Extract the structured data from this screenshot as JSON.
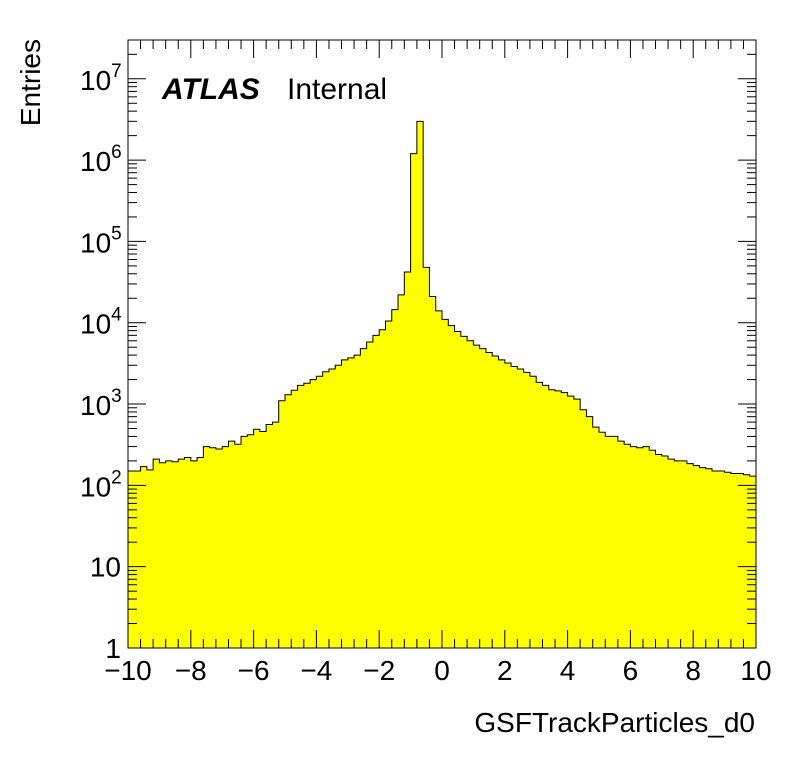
{
  "header": {
    "atlas_label": "ATLAS",
    "atlas_status": "Internal"
  },
  "colors": {
    "fill": "#ffff00",
    "line": "#000000"
  },
  "chart_data": {
    "type": "histogram",
    "xlabel": "GSFTrackParticles_d0",
    "ylabel": "Entries",
    "xlim": [
      -10,
      10
    ],
    "ylim": [
      1,
      30000000
    ],
    "log_y": true,
    "grid": false,
    "fill_color": "#ffff00",
    "bin_width": 0.2,
    "x_ticks": [
      {
        "value": -10,
        "label": "−10"
      },
      {
        "value": -8,
        "label": "−8"
      },
      {
        "value": -6,
        "label": "−6"
      },
      {
        "value": -4,
        "label": "−4"
      },
      {
        "value": -2,
        "label": "−2"
      },
      {
        "value": 0,
        "label": "0"
      },
      {
        "value": 2,
        "label": "2"
      },
      {
        "value": 4,
        "label": "4"
      },
      {
        "value": 6,
        "label": "6"
      },
      {
        "value": 8,
        "label": "8"
      },
      {
        "value": 10,
        "label": "10"
      }
    ],
    "y_ticks": [
      {
        "value": 1,
        "base": "1",
        "exp": ""
      },
      {
        "value": 10,
        "base": "10",
        "exp": ""
      },
      {
        "value": 100,
        "base": "10",
        "exp": "2"
      },
      {
        "value": 1000,
        "base": "10",
        "exp": "3"
      },
      {
        "value": 10000,
        "base": "10",
        "exp": "4"
      },
      {
        "value": 100000,
        "base": "10",
        "exp": "5"
      },
      {
        "value": 1000000,
        "base": "10",
        "exp": "6"
      },
      {
        "value": 10000000,
        "base": "10",
        "exp": "7"
      }
    ],
    "values": [
      150,
      150,
      170,
      155,
      210,
      190,
      200,
      195,
      210,
      220,
      200,
      220,
      300,
      290,
      280,
      300,
      350,
      320,
      400,
      420,
      490,
      460,
      560,
      600,
      1100,
      1300,
      1480,
      1700,
      1800,
      2000,
      2200,
      2500,
      2700,
      3000,
      3500,
      3700,
      4000,
      4800,
      5800,
      7000,
      8200,
      10500,
      14500,
      22000,
      42000,
      1200000,
      3000000,
      48000,
      21000,
      14000,
      11000,
      9200,
      7800,
      6800,
      6000,
      5300,
      4800,
      4300,
      3900,
      3500,
      3200,
      2900,
      2700,
      2450,
      2200,
      1850,
      1700,
      1500,
      1450,
      1380,
      1250,
      1150,
      850,
      700,
      520,
      450,
      400,
      400,
      350,
      320,
      300,
      290,
      300,
      270,
      240,
      230,
      210,
      200,
      200,
      185,
      175,
      165,
      160,
      150,
      150,
      145,
      140,
      140,
      135,
      130
    ]
  }
}
